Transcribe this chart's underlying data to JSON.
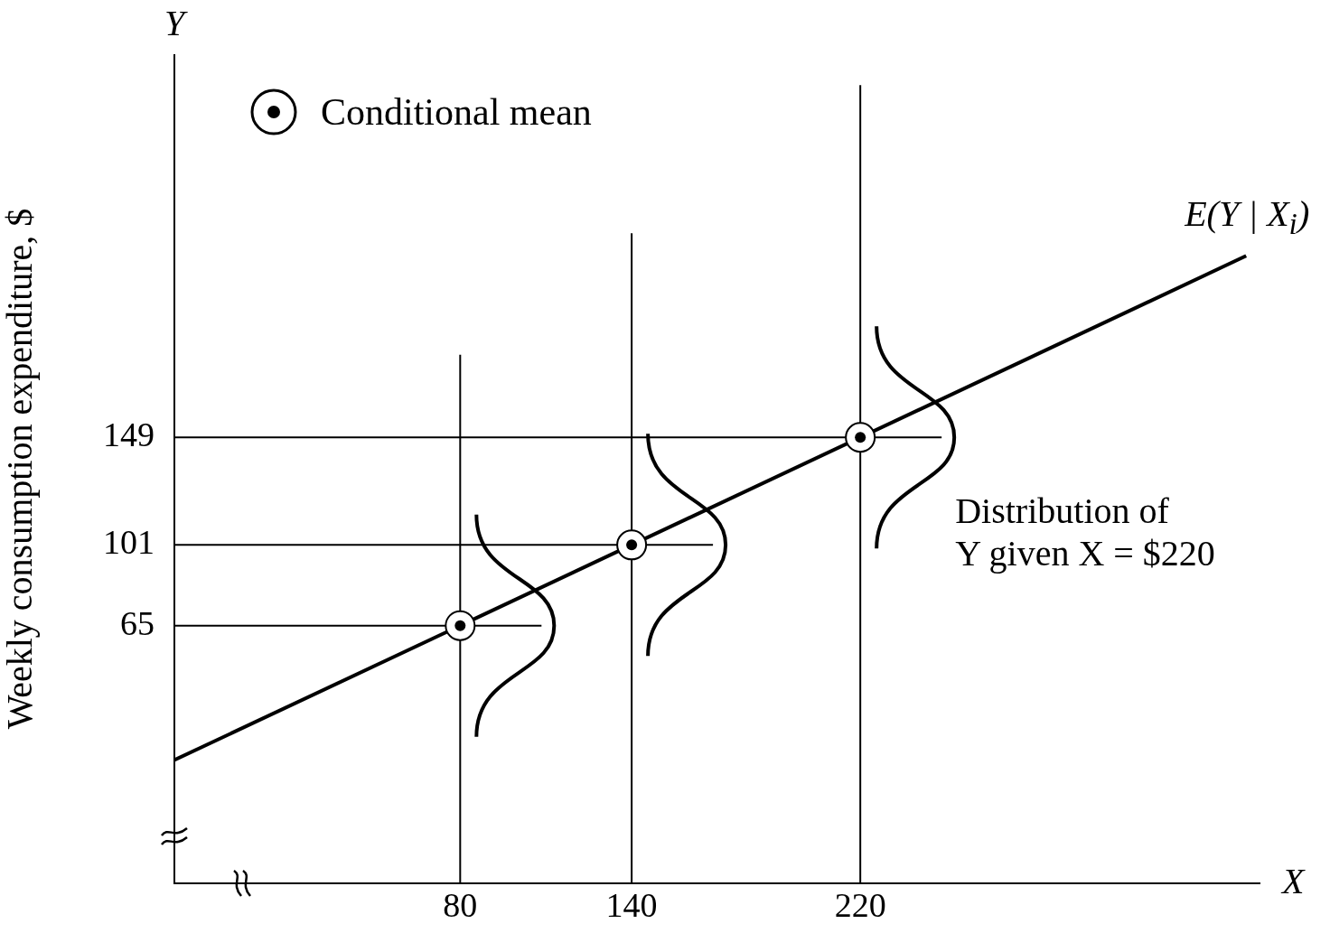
{
  "chart_data": {
    "type": "scatter",
    "xlabel": "X",
    "ylabel": "Weekly consumption expenditure, $",
    "annotations": [
      "Y",
      "Distribution of\nY given X  = $220"
    ],
    "series": [
      {
        "name": "Conditional mean",
        "color": "#000000",
        "marker": "circle",
        "x": [
          80,
          140,
          220
        ],
        "values": [
          65,
          101,
          149
        ]
      },
      {
        "type": "line",
        "name": "E(Y | X$_{i}$)",
        "color": "#000000",
        "marker": "none",
        "x": [
          -20,
          355
        ],
        "values": [
          5,
          230
        ]
      }
    ],
    "xlim": [
      -20,
      360
    ],
    "ylim": [
      -50,
      320
    ],
    "xticks": [
      80,
      140,
      220
    ],
    "yticks": [
      65,
      101,
      149
    ],
    "ref_lines": [
      {
        "axis": "y",
        "value": 65,
        "color": "#000000"
      },
      {
        "axis": "y",
        "value": 101,
        "color": "#000000"
      },
      {
        "axis": "y",
        "value": 149,
        "color": "#000000"
      },
      {
        "axis": "x",
        "value": 80,
        "color": "#000000"
      },
      {
        "axis": "x",
        "value": 140,
        "color": "#000000"
      },
      {
        "axis": "x",
        "value": 220,
        "color": "#000000"
      }
    ],
    "grid": false,
    "legend": "top left"
  }
}
